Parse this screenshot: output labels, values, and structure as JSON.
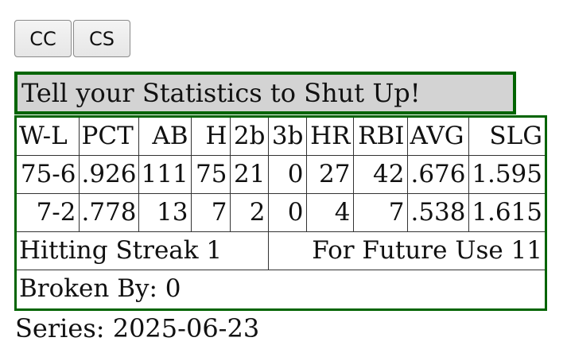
{
  "buttons": {
    "cc_label": "CC",
    "cs_label": "CS"
  },
  "title": "Tell your Statistics to Shut Up!",
  "table": {
    "headers": [
      "W-L",
      "PCT",
      "AB",
      "H",
      "2b",
      "3b",
      "HR",
      "RBI",
      "AVG",
      "SLG"
    ],
    "rows": [
      [
        "75-6",
        ".926",
        "111",
        "75",
        "21",
        "0",
        "27",
        "42",
        ".676",
        "1.595"
      ],
      [
        "7-2",
        ".778",
        "13",
        "7",
        "2",
        "0",
        "4",
        "7",
        ".538",
        "1.615"
      ]
    ],
    "hitting_streak": "Hitting Streak 1",
    "future_use": "For Future Use 11",
    "broken_by": "Broken By: 0"
  },
  "series": "Series: 2025-06-23",
  "colors": {
    "frame": "#006400",
    "title_bg": "#d3d3d3"
  }
}
